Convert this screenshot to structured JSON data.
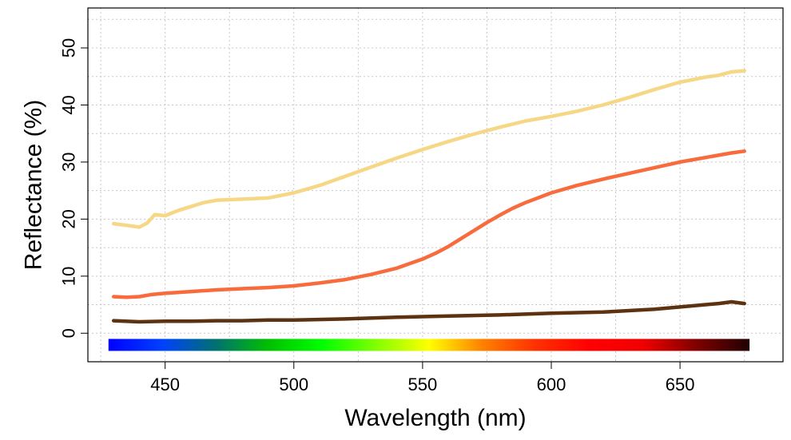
{
  "chart_data": {
    "type": "line",
    "title": "",
    "xlabel": "Wavelength (nm)",
    "ylabel": "Reflectance (%)",
    "xlim": [
      420,
      690
    ],
    "ylim": [
      -5,
      57
    ],
    "x_ticks": [
      450,
      500,
      550,
      600,
      650
    ],
    "y_ticks": [
      0,
      10,
      20,
      30,
      40,
      50
    ],
    "grid": true,
    "legend": "none",
    "spectrum_bar": {
      "x_range": [
        428,
        677
      ],
      "y_range": [
        -3.1,
        -1.0
      ],
      "colors": [
        "#0000ff",
        "#0040ff",
        "#007070",
        "#00c000",
        "#00ff00",
        "#80ff00",
        "#ffff00",
        "#ff8000",
        "#ff3000",
        "#ff0000",
        "#f00000",
        "#800000",
        "#200000"
      ]
    },
    "series": [
      {
        "color": "#f5d785",
        "x": [
          430,
          435,
          440,
          443,
          446,
          450,
          455,
          460,
          465,
          470,
          480,
          490,
          500,
          510,
          520,
          530,
          540,
          550,
          560,
          570,
          580,
          590,
          600,
          610,
          620,
          630,
          640,
          650,
          660,
          665,
          670,
          675
        ],
        "y": [
          19.2,
          18.9,
          18.6,
          19.3,
          20.8,
          20.6,
          21.5,
          22.2,
          22.9,
          23.3,
          23.5,
          23.7,
          24.6,
          25.9,
          27.5,
          29.1,
          30.7,
          32.2,
          33.6,
          34.9,
          36.1,
          37.2,
          38.0,
          38.9,
          40.0,
          41.3,
          42.7,
          44.0,
          44.9,
          45.2,
          45.8,
          46.0
        ]
      },
      {
        "color": "#f76b3c",
        "x": [
          430,
          435,
          440,
          445,
          450,
          460,
          470,
          480,
          490,
          500,
          510,
          520,
          530,
          540,
          550,
          555,
          560,
          565,
          570,
          575,
          580,
          585,
          590,
          600,
          610,
          620,
          630,
          640,
          650,
          660,
          670,
          675
        ],
        "y": [
          6.4,
          6.3,
          6.4,
          6.8,
          7.0,
          7.3,
          7.6,
          7.8,
          8.0,
          8.3,
          8.8,
          9.4,
          10.3,
          11.4,
          13.0,
          14.0,
          15.2,
          16.6,
          18.0,
          19.4,
          20.7,
          21.9,
          22.9,
          24.6,
          25.9,
          27.0,
          28.0,
          29.0,
          30.0,
          30.8,
          31.6,
          31.9
        ]
      },
      {
        "color": "#5c3210",
        "x": [
          430,
          440,
          450,
          460,
          470,
          480,
          490,
          500,
          520,
          540,
          560,
          580,
          600,
          620,
          640,
          650,
          660,
          665,
          670,
          675
        ],
        "y": [
          2.2,
          2.0,
          2.1,
          2.1,
          2.2,
          2.2,
          2.3,
          2.3,
          2.5,
          2.8,
          3.0,
          3.2,
          3.5,
          3.7,
          4.2,
          4.6,
          5.0,
          5.2,
          5.5,
          5.2
        ]
      }
    ]
  }
}
